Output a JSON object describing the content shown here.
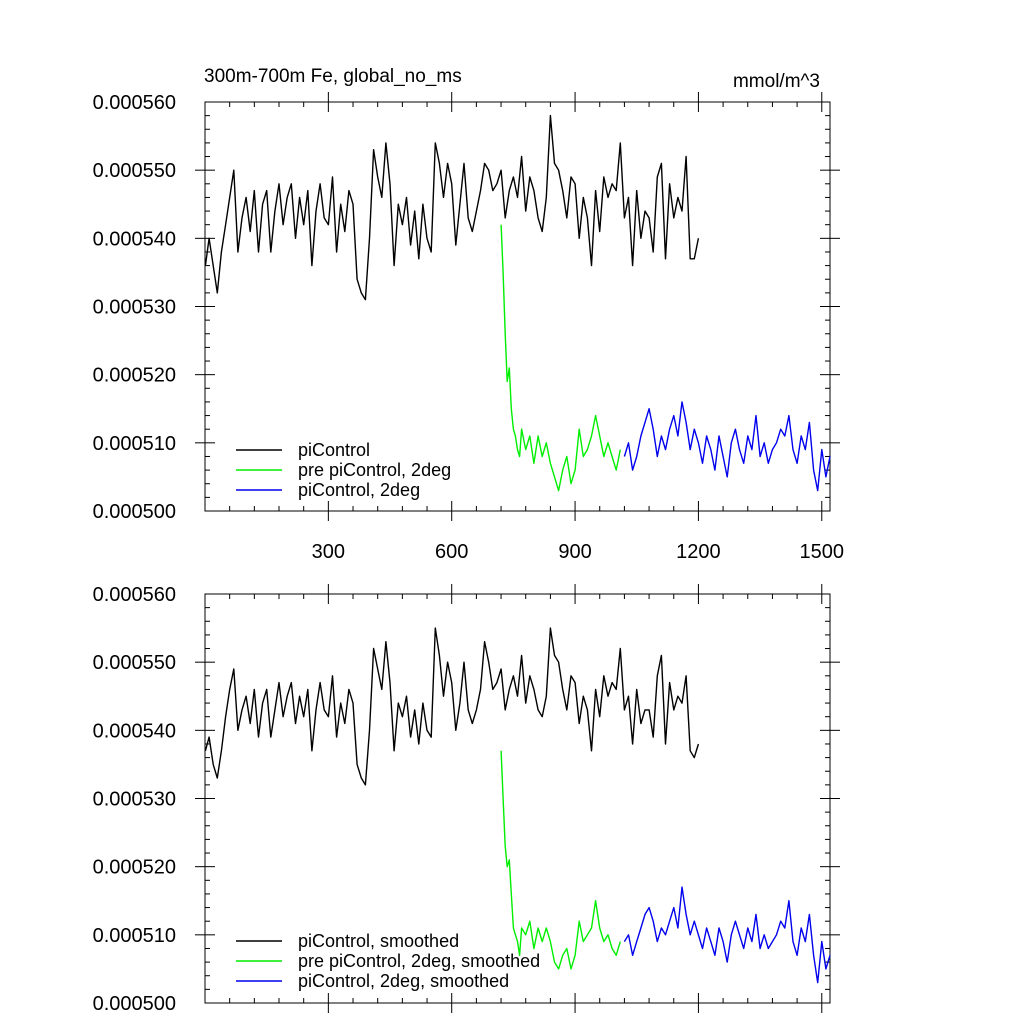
{
  "colors": {
    "black": "#000000",
    "green": "#00ee00",
    "blue": "#0000ee"
  },
  "chart_data": [
    {
      "type": "line",
      "title_left": "300m-700m Fe, global_no_ms",
      "title_right": "mmol/m^3",
      "xlim": [
        0,
        1520
      ],
      "ylim": [
        0.0005,
        0.00056
      ],
      "xticks": [
        300,
        600,
        900,
        1200,
        1500
      ],
      "xtick_labels": [
        "300",
        "600",
        "900",
        "1200",
        "1500"
      ],
      "yticks": [
        0.0005,
        0.00051,
        0.00052,
        0.00053,
        0.00054,
        0.00055,
        0.00056
      ],
      "ytick_labels": [
        "0.000500",
        "0.000510",
        "0.000520",
        "0.000530",
        "0.000540",
        "0.000550",
        "0.000560"
      ],
      "legend_position": "bottom-left",
      "series": [
        {
          "name": "piControl",
          "color": "#000000",
          "x": [
            1,
            10,
            20,
            30,
            40,
            50,
            60,
            70,
            80,
            90,
            100,
            110,
            120,
            130,
            140,
            150,
            160,
            170,
            180,
            190,
            200,
            210,
            220,
            230,
            240,
            250,
            260,
            270,
            280,
            290,
            300,
            310,
            320,
            330,
            340,
            350,
            360,
            370,
            380,
            390,
            400,
            410,
            420,
            430,
            440,
            450,
            460,
            470,
            480,
            490,
            500,
            510,
            520,
            530,
            540,
            550,
            560,
            570,
            580,
            590,
            600,
            610,
            620,
            630,
            640,
            650,
            660,
            670,
            680,
            690,
            700,
            710,
            720,
            730,
            740,
            750,
            760,
            770,
            780,
            790,
            800,
            810,
            820,
            830,
            840,
            850,
            860,
            870,
            880,
            890,
            900,
            910,
            920,
            930,
            940,
            950,
            960,
            970,
            980,
            990,
            1000,
            1010,
            1020,
            1030,
            1040,
            1050,
            1060,
            1070,
            1080,
            1090,
            1100,
            1110,
            1120,
            1130,
            1140,
            1150,
            1160,
            1170,
            1180,
            1190,
            1200
          ],
          "y": [
            0.000536,
            0.00054,
            0.000536,
            0.000532,
            0.000538,
            0.000542,
            0.000546,
            0.00055,
            0.000538,
            0.000543,
            0.000546,
            0.000541,
            0.000547,
            0.000538,
            0.000545,
            0.000547,
            0.000538,
            0.000544,
            0.000548,
            0.000542,
            0.000546,
            0.000548,
            0.00054,
            0.000546,
            0.000542,
            0.000547,
            0.000536,
            0.000544,
            0.000548,
            0.000543,
            0.000542,
            0.000549,
            0.000538,
            0.000545,
            0.000541,
            0.000547,
            0.000545,
            0.000534,
            0.000532,
            0.000531,
            0.00054,
            0.000553,
            0.000549,
            0.000546,
            0.000554,
            0.000548,
            0.000536,
            0.000545,
            0.000542,
            0.000546,
            0.000539,
            0.000544,
            0.000537,
            0.000545,
            0.00054,
            0.000538,
            0.000554,
            0.000551,
            0.000546,
            0.000551,
            0.000548,
            0.000539,
            0.000545,
            0.000551,
            0.000543,
            0.000541,
            0.000544,
            0.000547,
            0.000551,
            0.00055,
            0.000547,
            0.000548,
            0.00055,
            0.000543,
            0.000547,
            0.000549,
            0.000546,
            0.000552,
            0.000544,
            0.000549,
            0.000547,
            0.000543,
            0.000541,
            0.000546,
            0.000558,
            0.000551,
            0.00055,
            0.000547,
            0.000543,
            0.000549,
            0.000548,
            0.00054,
            0.000546,
            0.000543,
            0.000536,
            0.000547,
            0.000541,
            0.000549,
            0.000546,
            0.000548,
            0.000547,
            0.000554,
            0.000543,
            0.000546,
            0.000536,
            0.000547,
            0.00054,
            0.000544,
            0.000543,
            0.000538,
            0.000549,
            0.000551,
            0.000537,
            0.000548,
            0.000543,
            0.000546,
            0.000544,
            0.000552,
            0.000537,
            0.000537,
            0.00054
          ]
        },
        {
          "name": "pre piControl, 2deg",
          "color": "#00ee00",
          "x": [
            720,
            725,
            730,
            735,
            740,
            745,
            750,
            755,
            760,
            765,
            770,
            780,
            790,
            800,
            810,
            820,
            830,
            840,
            850,
            860,
            870,
            880,
            890,
            900,
            910,
            920,
            930,
            940,
            950,
            960,
            970,
            980,
            990,
            1000,
            1010
          ],
          "y": [
            0.000542,
            0.000535,
            0.000526,
            0.000519,
            0.000521,
            0.000515,
            0.000512,
            0.000511,
            0.000509,
            0.000508,
            0.000512,
            0.000509,
            0.000511,
            0.000507,
            0.000511,
            0.000508,
            0.00051,
            0.000507,
            0.000505,
            0.000503,
            0.000506,
            0.000508,
            0.000504,
            0.000506,
            0.000512,
            0.000508,
            0.000509,
            0.000511,
            0.000514,
            0.000511,
            0.000508,
            0.00051,
            0.000508,
            0.000506,
            0.000509
          ]
        },
        {
          "name": "piControl, 2deg",
          "color": "#0000ee",
          "x": [
            1020,
            1030,
            1040,
            1050,
            1060,
            1070,
            1080,
            1090,
            1100,
            1110,
            1120,
            1130,
            1140,
            1150,
            1160,
            1170,
            1180,
            1190,
            1200,
            1210,
            1220,
            1230,
            1240,
            1250,
            1260,
            1270,
            1280,
            1290,
            1300,
            1310,
            1320,
            1330,
            1340,
            1350,
            1360,
            1370,
            1380,
            1390,
            1400,
            1410,
            1420,
            1430,
            1440,
            1450,
            1460,
            1470,
            1480,
            1490,
            1500,
            1510,
            1520
          ],
          "y": [
            0.000508,
            0.00051,
            0.000506,
            0.000508,
            0.000511,
            0.000513,
            0.000515,
            0.000512,
            0.000508,
            0.000511,
            0.000509,
            0.000512,
            0.000514,
            0.000511,
            0.000516,
            0.000513,
            0.000509,
            0.000512,
            0.00051,
            0.000507,
            0.000511,
            0.000509,
            0.000506,
            0.000511,
            0.000508,
            0.000505,
            0.00051,
            0.000512,
            0.000509,
            0.000507,
            0.000511,
            0.000509,
            0.000514,
            0.000508,
            0.00051,
            0.000507,
            0.000509,
            0.00051,
            0.000512,
            0.000511,
            0.000514,
            0.000509,
            0.000507,
            0.000511,
            0.000509,
            0.000513,
            0.000506,
            0.000503,
            0.000509,
            0.000505,
            0.000508
          ]
        }
      ]
    },
    {
      "type": "line",
      "xlim": [
        0,
        1520
      ],
      "ylim": [
        0.0005,
        0.00056
      ],
      "xticks": [
        300,
        600,
        900,
        1200,
        1500
      ],
      "yticks": [
        0.0005,
        0.00051,
        0.00052,
        0.00053,
        0.00054,
        0.00055,
        0.00056
      ],
      "ytick_labels": [
        "0.000500",
        "0.000510",
        "0.000520",
        "0.000530",
        "0.000540",
        "0.000550",
        "0.000560"
      ],
      "legend_position": "bottom-left",
      "series": [
        {
          "name": "piControl, smoothed",
          "color": "#000000",
          "x": [
            1,
            10,
            20,
            30,
            40,
            50,
            60,
            70,
            80,
            90,
            100,
            110,
            120,
            130,
            140,
            150,
            160,
            170,
            180,
            190,
            200,
            210,
            220,
            230,
            240,
            250,
            260,
            270,
            280,
            290,
            300,
            310,
            320,
            330,
            340,
            350,
            360,
            370,
            380,
            390,
            400,
            410,
            420,
            430,
            440,
            450,
            460,
            470,
            480,
            490,
            500,
            510,
            520,
            530,
            540,
            550,
            560,
            570,
            580,
            590,
            600,
            610,
            620,
            630,
            640,
            650,
            660,
            670,
            680,
            690,
            700,
            710,
            720,
            730,
            740,
            750,
            760,
            770,
            780,
            790,
            800,
            810,
            820,
            830,
            840,
            850,
            860,
            870,
            880,
            890,
            900,
            910,
            920,
            930,
            940,
            950,
            960,
            970,
            980,
            990,
            1000,
            1010,
            1020,
            1030,
            1040,
            1050,
            1060,
            1070,
            1080,
            1090,
            1100,
            1110,
            1120,
            1130,
            1140,
            1150,
            1160,
            1170,
            1180,
            1190,
            1200
          ],
          "y": [
            0.000537,
            0.000539,
            0.000535,
            0.000533,
            0.000537,
            0.000542,
            0.000546,
            0.000549,
            0.00054,
            0.000543,
            0.000545,
            0.000541,
            0.000546,
            0.000539,
            0.000544,
            0.000546,
            0.000539,
            0.000543,
            0.000547,
            0.000542,
            0.000545,
            0.000547,
            0.000541,
            0.000545,
            0.000542,
            0.000546,
            0.000537,
            0.000543,
            0.000547,
            0.000543,
            0.000542,
            0.000548,
            0.000539,
            0.000544,
            0.000541,
            0.000546,
            0.000544,
            0.000535,
            0.000533,
            0.000532,
            0.00054,
            0.000552,
            0.000549,
            0.000546,
            0.000553,
            0.000547,
            0.000537,
            0.000544,
            0.000542,
            0.000545,
            0.000539,
            0.000543,
            0.000538,
            0.000544,
            0.00054,
            0.000539,
            0.000555,
            0.000551,
            0.000545,
            0.00055,
            0.000547,
            0.00054,
            0.000544,
            0.00055,
            0.000543,
            0.000541,
            0.000543,
            0.000546,
            0.000553,
            0.00055,
            0.000546,
            0.000547,
            0.000549,
            0.000543,
            0.000546,
            0.000548,
            0.000545,
            0.000551,
            0.000544,
            0.000548,
            0.000546,
            0.000543,
            0.000542,
            0.000545,
            0.000555,
            0.000551,
            0.00055,
            0.000546,
            0.000543,
            0.000548,
            0.000547,
            0.000541,
            0.000545,
            0.000543,
            0.000537,
            0.000546,
            0.000542,
            0.000548,
            0.000545,
            0.000547,
            0.000546,
            0.000552,
            0.000543,
            0.000545,
            0.000538,
            0.000546,
            0.000541,
            0.000543,
            0.000543,
            0.000539,
            0.000548,
            0.000551,
            0.000538,
            0.000547,
            0.000543,
            0.000545,
            0.000544,
            0.000548,
            0.000537,
            0.000536,
            0.000538
          ]
        },
        {
          "name": "pre piControl, 2deg, smoothed",
          "color": "#00ee00",
          "x": [
            720,
            725,
            730,
            735,
            740,
            745,
            750,
            755,
            760,
            765,
            770,
            780,
            790,
            800,
            810,
            820,
            830,
            840,
            850,
            860,
            870,
            880,
            890,
            900,
            910,
            920,
            930,
            940,
            950,
            960,
            970,
            980,
            990,
            1000,
            1010
          ],
          "y": [
            0.000537,
            0.00053,
            0.000523,
            0.00052,
            0.000521,
            0.000516,
            0.000511,
            0.00051,
            0.000509,
            0.000507,
            0.000511,
            0.00051,
            0.000512,
            0.000508,
            0.000511,
            0.000509,
            0.000511,
            0.000509,
            0.000506,
            0.000505,
            0.000507,
            0.000508,
            0.000505,
            0.000507,
            0.000512,
            0.000509,
            0.00051,
            0.000511,
            0.000515,
            0.000511,
            0.000509,
            0.00051,
            0.000508,
            0.000507,
            0.000509
          ]
        },
        {
          "name": "piControl, 2deg, smoothed",
          "color": "#0000ee",
          "x": [
            1020,
            1030,
            1040,
            1050,
            1060,
            1070,
            1080,
            1090,
            1100,
            1110,
            1120,
            1130,
            1140,
            1150,
            1160,
            1170,
            1180,
            1190,
            1200,
            1210,
            1220,
            1230,
            1240,
            1250,
            1260,
            1270,
            1280,
            1290,
            1300,
            1310,
            1320,
            1330,
            1340,
            1350,
            1360,
            1370,
            1380,
            1390,
            1400,
            1410,
            1420,
            1430,
            1440,
            1450,
            1460,
            1470,
            1480,
            1490,
            1500,
            1510,
            1520
          ],
          "y": [
            0.000509,
            0.00051,
            0.000507,
            0.000509,
            0.000511,
            0.000513,
            0.000514,
            0.000512,
            0.000509,
            0.000511,
            0.00051,
            0.000512,
            0.000514,
            0.000511,
            0.000517,
            0.000513,
            0.00051,
            0.000512,
            0.00051,
            0.000508,
            0.000511,
            0.000509,
            0.000507,
            0.000511,
            0.000509,
            0.000506,
            0.00051,
            0.000512,
            0.00051,
            0.000508,
            0.000511,
            0.000509,
            0.000513,
            0.000508,
            0.00051,
            0.000508,
            0.000509,
            0.00051,
            0.000512,
            0.000511,
            0.000515,
            0.000509,
            0.000507,
            0.000511,
            0.000509,
            0.000513,
            0.000507,
            0.000503,
            0.000509,
            0.000505,
            0.000507
          ]
        }
      ]
    }
  ]
}
